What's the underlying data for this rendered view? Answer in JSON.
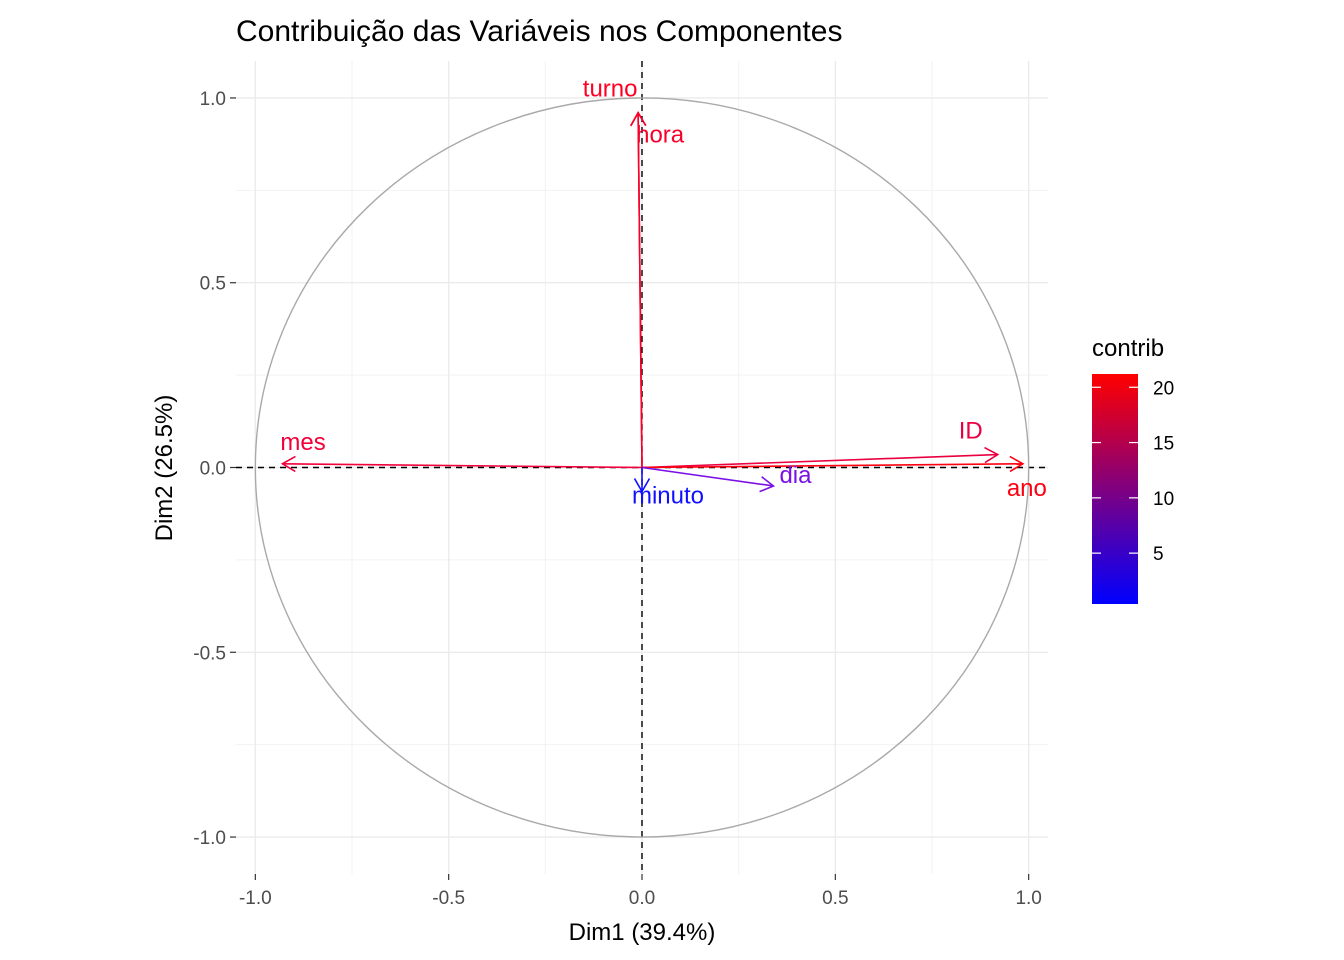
{
  "chart_data": {
    "type": "scatter",
    "subtype": "pca-variable-correlation-circle",
    "title": "Contribuição das Variáveis nos Componentes",
    "xlabel": "Dim1 (39.4%)",
    "ylabel": "Dim2 (26.5%)",
    "xlim": [
      -1.05,
      1.05
    ],
    "ylim": [
      -1.1,
      1.1
    ],
    "x_ticks": [
      -1.0,
      -0.5,
      0.0,
      0.5,
      1.0
    ],
    "x_tick_labels": [
      "-1.0",
      "-0.5",
      "0.0",
      "0.5",
      "1.0"
    ],
    "y_ticks": [
      -1.0,
      -0.5,
      0.0,
      0.5,
      1.0
    ],
    "y_tick_labels": [
      "-1.0",
      "-0.5",
      "0.0",
      "0.5",
      "1.0"
    ],
    "grid": true,
    "unit_circle": true,
    "reference_lines": [
      "x=0",
      "y=0"
    ],
    "vectors": [
      {
        "name": "turno",
        "x": -0.01,
        "y": 0.96,
        "contrib": 20.8,
        "color": "#ff0022"
      },
      {
        "name": "hora",
        "x": -0.01,
        "y": 0.96,
        "contrib": 20.6,
        "color": "#f7002a"
      },
      {
        "name": "mes",
        "x": -0.93,
        "y": 0.01,
        "contrib": 20.5,
        "color": "#f1003a"
      },
      {
        "name": "ID",
        "x": 0.92,
        "y": 0.035,
        "contrib": 18.5,
        "color": "#ea0040"
      },
      {
        "name": "ano",
        "x": 0.985,
        "y": 0.01,
        "contrib": 21.0,
        "color": "#ff0010"
      },
      {
        "name": "dia",
        "x": 0.34,
        "y": -0.05,
        "contrib": 5.5,
        "color": "#7b10e6"
      },
      {
        "name": "minuto",
        "x": 0.0,
        "y": -0.065,
        "contrib": 1.2,
        "color": "#1010ff"
      }
    ],
    "legend": {
      "title": "contrib",
      "position": "right",
      "ticks": [
        5,
        10,
        15,
        20
      ],
      "tick_labels": [
        "5",
        "10",
        "15",
        "20"
      ],
      "range": [
        0.4,
        21.2
      ],
      "low_color": "#0000ff",
      "high_color": "#ff0000"
    }
  }
}
